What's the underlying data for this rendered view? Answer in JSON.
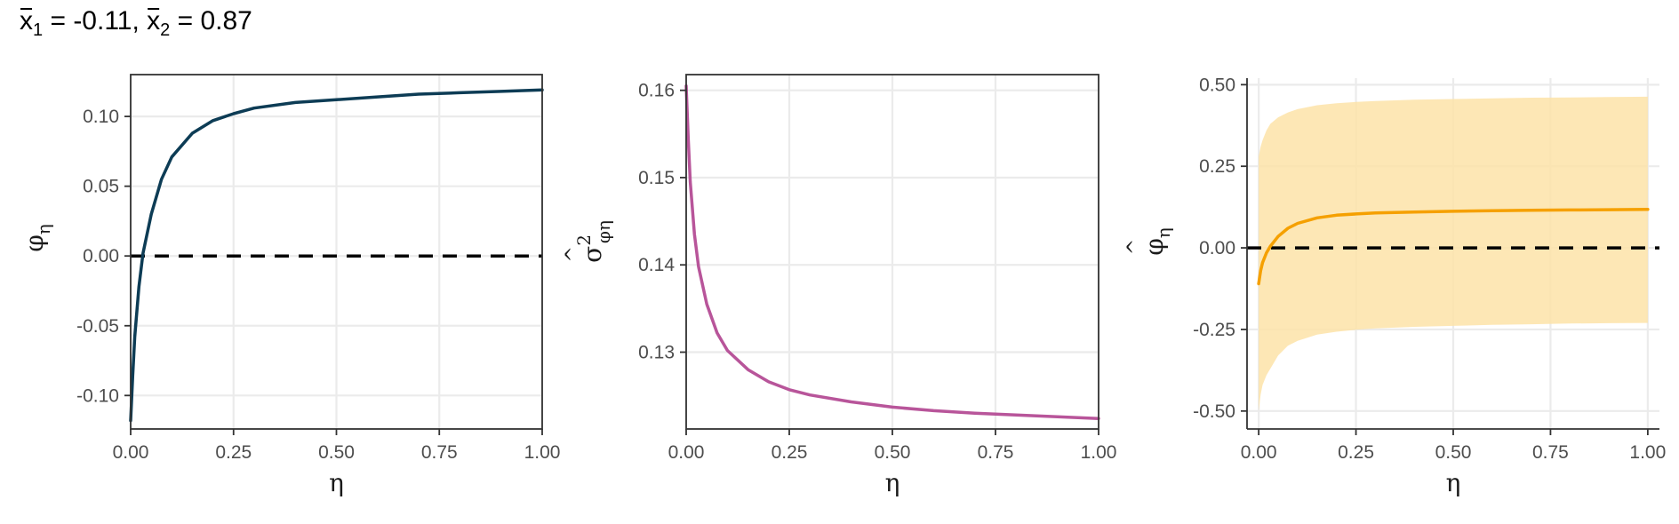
{
  "title": {
    "xbar1_label": "x",
    "sub1": "1",
    "part1": " = -0.11, ",
    "xbar2_label": "x",
    "sub2": "2",
    "part2": " = 0.87"
  },
  "colors": {
    "panel1_line": "#0d3c55",
    "panel2_line": "#b8559a",
    "panel3_line": "#f5a000",
    "panel3_band": "#fde3a8",
    "grid": "#ebebeb",
    "frame": "#333333",
    "dashed": "#000000"
  },
  "chart_data": [
    {
      "type": "line",
      "title": "",
      "xlabel": "η",
      "ylabel": {
        "base": "φ",
        "sub": "η"
      },
      "xlim": [
        0,
        1
      ],
      "ylim": [
        -0.124,
        0.13
      ],
      "x_ticks": [
        0,
        0.25,
        0.5,
        0.75,
        1.0
      ],
      "x_tick_labels": [
        "0.00",
        "0.25",
        "0.50",
        "0.75",
        "1.00"
      ],
      "y_ticks": [
        -0.1,
        -0.05,
        0.0,
        0.05,
        0.1
      ],
      "y_tick_labels": [
        "-0.10",
        "-0.05",
        "0.00",
        "0.05",
        "0.10"
      ],
      "grid": true,
      "reference_line": {
        "y": 0,
        "style": "dashed"
      },
      "series": [
        {
          "x": [
            0,
            0.005,
            0.01,
            0.02,
            0.03,
            0.05,
            0.075,
            0.1,
            0.15,
            0.2,
            0.25,
            0.3,
            0.4,
            0.5,
            0.6,
            0.7,
            0.8,
            0.9,
            1.0
          ],
          "y": [
            -0.118,
            -0.086,
            -0.058,
            -0.022,
            0.002,
            0.03,
            0.055,
            0.071,
            0.088,
            0.097,
            0.102,
            0.106,
            0.11,
            0.112,
            0.114,
            0.116,
            0.117,
            0.118,
            0.119
          ]
        }
      ]
    },
    {
      "type": "line",
      "title": "",
      "xlabel": "η",
      "ylabel": {
        "base": "σ",
        "hat": "^",
        "sup": "2",
        "sub": "φη"
      },
      "xlim": [
        0,
        1
      ],
      "ylim": [
        0.1212,
        0.1618
      ],
      "x_ticks": [
        0,
        0.25,
        0.5,
        0.75,
        1.0
      ],
      "x_tick_labels": [
        "0.00",
        "0.25",
        "0.50",
        "0.75",
        "1.00"
      ],
      "y_ticks": [
        0.13,
        0.14,
        0.15,
        0.16
      ],
      "y_tick_labels": [
        "0.13",
        "0.14",
        "0.15",
        "0.16"
      ],
      "grid": true,
      "series": [
        {
          "x": [
            0,
            0.005,
            0.01,
            0.02,
            0.03,
            0.05,
            0.075,
            0.1,
            0.15,
            0.2,
            0.25,
            0.3,
            0.4,
            0.5,
            0.6,
            0.7,
            0.8,
            0.9,
            1.0
          ],
          "y": [
            0.1605,
            0.1545,
            0.1495,
            0.1435,
            0.1398,
            0.1355,
            0.1322,
            0.1302,
            0.128,
            0.1266,
            0.1257,
            0.1251,
            0.1243,
            0.1237,
            0.1233,
            0.123,
            0.1228,
            0.1226,
            0.1224
          ]
        }
      ]
    },
    {
      "type": "line",
      "title": "",
      "xlabel": "η",
      "ylabel": {
        "base": "φ",
        "hat": "^",
        "sub": "η"
      },
      "xlim": [
        -0.03,
        1.03
      ],
      "ylim": [
        -0.555,
        0.52
      ],
      "x_ticks": [
        0,
        0.25,
        0.5,
        0.75,
        1.0
      ],
      "x_tick_labels": [
        "0.00",
        "0.25",
        "0.50",
        "0.75",
        "1.00"
      ],
      "y_ticks": [
        -0.5,
        -0.25,
        0.0,
        0.25,
        0.5
      ],
      "y_tick_labels": [
        "-0.50",
        "-0.25",
        "0.00",
        "0.25",
        "0.50"
      ],
      "grid": true,
      "reference_line": {
        "y": 0,
        "style": "dashed"
      },
      "series": [
        {
          "x": [
            0,
            0.005,
            0.01,
            0.02,
            0.03,
            0.05,
            0.075,
            0.1,
            0.15,
            0.2,
            0.25,
            0.3,
            0.4,
            0.5,
            0.6,
            0.7,
            0.8,
            0.9,
            1.0
          ],
          "y": [
            -0.11,
            -0.07,
            -0.045,
            -0.015,
            0.005,
            0.035,
            0.06,
            0.075,
            0.092,
            0.1,
            0.104,
            0.107,
            0.11,
            0.112,
            0.114,
            0.115,
            0.116,
            0.117,
            0.118
          ],
          "ribbon_upper": [
            0.28,
            0.31,
            0.33,
            0.36,
            0.38,
            0.4,
            0.415,
            0.425,
            0.437,
            0.443,
            0.447,
            0.45,
            0.454,
            0.456,
            0.458,
            0.46,
            0.461,
            0.462,
            0.463
          ],
          "ribbon_lower": [
            -0.5,
            -0.45,
            -0.42,
            -0.39,
            -0.37,
            -0.33,
            -0.3,
            -0.285,
            -0.266,
            -0.257,
            -0.251,
            -0.247,
            -0.242,
            -0.239,
            -0.236,
            -0.234,
            -0.232,
            -0.231,
            -0.23
          ]
        }
      ]
    }
  ]
}
